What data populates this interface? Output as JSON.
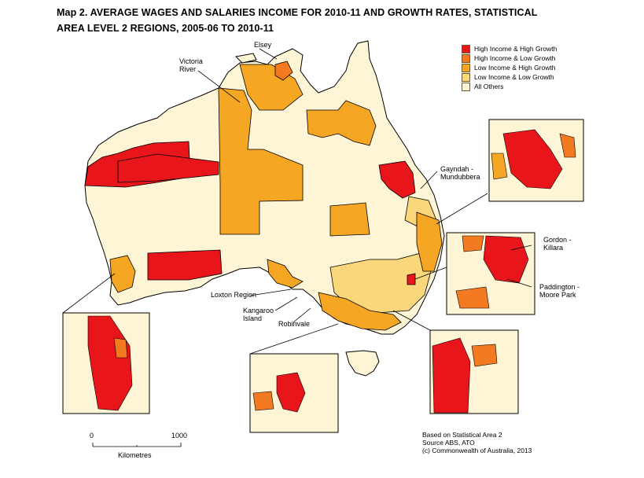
{
  "title": {
    "line1": "Map 2. AVERAGE WAGES AND SALARIES INCOME FOR 2010-11 AND GROWTH RATES, STATISTICAL",
    "line2": "AREA LEVEL 2 REGIONS, 2005-06 TO 2010-11"
  },
  "legend": [
    {
      "label": "High Income & High Growth",
      "color": "#e8151a"
    },
    {
      "label": "High Income & Low Growth",
      "color": "#f47a22"
    },
    {
      "label": "Low Income & High Growth",
      "color": "#f5a623"
    },
    {
      "label": "Low Income & Low Growth",
      "color": "#fbd77c"
    },
    {
      "label": "All Others",
      "color": "#fdf5d6"
    }
  ],
  "place_labels": {
    "elsey": "Elsey",
    "victoria_river": [
      "Victoria",
      "River"
    ],
    "gayndah": [
      "Gayndah -",
      "Mundubbera"
    ],
    "gordon": [
      "Gordon -",
      "Killara"
    ],
    "paddington": [
      "Paddington -",
      "Moore Park"
    ],
    "loxton": "Loxton Region",
    "kangaroo": [
      "Kangaroo",
      "Island"
    ],
    "robinvale": "Robinvale"
  },
  "scale": {
    "min": "0",
    "max": "1000",
    "unit": "Kilometres"
  },
  "source": [
    "Based on Statistical Area 2",
    "Source ABS, ATO",
    "(c) Commonwealth of Australia, 2013"
  ],
  "colors": {
    "high_high": "#e8151a",
    "high_low": "#f47a22",
    "low_high": "#f5a623",
    "low_low": "#fbd77c",
    "others": "#fdf5d6",
    "border": "#000000"
  }
}
